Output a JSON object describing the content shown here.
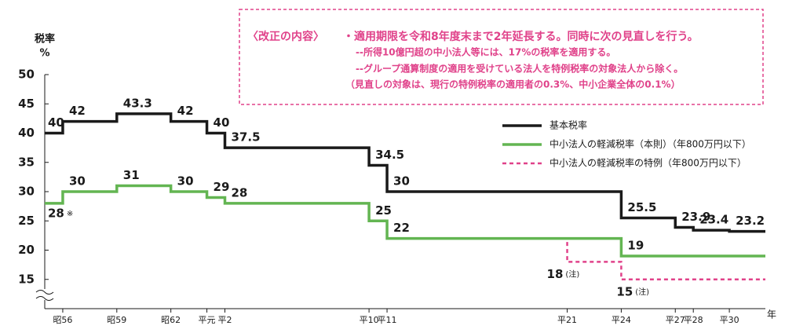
{
  "chart_data": {
    "type": "step",
    "y_label_lines": [
      "税率",
      "%"
    ],
    "x_label": "年",
    "xlim": [
      1980,
      2020
    ],
    "ylim": [
      10,
      50
    ],
    "yticks": [
      15,
      20,
      25,
      30,
      35,
      40,
      45,
      50
    ],
    "xticks": [
      {
        "value": 1981,
        "label": "昭56"
      },
      {
        "value": 1984,
        "label": "昭59"
      },
      {
        "value": 1987,
        "label": "昭62"
      },
      {
        "value": 1989,
        "label": "平元"
      },
      {
        "value": 1990,
        "label": "平2"
      },
      {
        "value": 1998,
        "label": "平10"
      },
      {
        "value": 1999,
        "label": "平11"
      },
      {
        "value": 2009,
        "label": "平21"
      },
      {
        "value": 2012,
        "label": "平24"
      },
      {
        "value": 2015,
        "label": "平27"
      },
      {
        "value": 2016,
        "label": "平28"
      },
      {
        "value": 2018,
        "label": "平30"
      }
    ],
    "series": [
      {
        "name": "中小法人の軽減税率の特例（年800万円以下）",
        "color": "#e0428a",
        "dashed": true,
        "x": [
          1999,
          2009,
          2012
        ],
        "values": [
          22,
          18,
          15
        ],
        "value_notes": [
          null,
          "(注)",
          "(注)"
        ]
      },
      {
        "name": "基本税率",
        "color": "#1a1a1a",
        "dashed": false,
        "x": [
          1980,
          1981,
          1984,
          1987,
          1989,
          1990,
          1998,
          1999,
          2012,
          2015,
          2016,
          2018
        ],
        "values": [
          40,
          42,
          43.3,
          42,
          40,
          37.5,
          34.5,
          30,
          25.5,
          23.9,
          23.4,
          23.2
        ]
      },
      {
        "name": "中小法人の軽減税率（本則）（年800万円以下）",
        "color": "#63b552",
        "dashed": false,
        "x": [
          1980,
          1981,
          1984,
          1987,
          1989,
          1990,
          1998,
          1999,
          2012
        ],
        "values": [
          28,
          30,
          31,
          30,
          29,
          28,
          25,
          22,
          19
        ],
        "value_notes": [
          "※",
          null,
          null,
          null,
          null,
          null,
          null,
          null,
          null
        ]
      }
    ],
    "note": {
      "heading": "〈改正の内容〉",
      "lines": [
        "・適用期限を令和8年度末まで2年延長する。同時に次の見直しを行う。",
        "--所得10億円超の中小法人等には、17%の税率を適用する。",
        "--グループ通算制度の適用を受けている法人を特例税率の対象法人から除く。",
        "（見直しの対象は、現行の特例税率の適用者の0.3%、中小企業全体の0.1%）"
      ]
    }
  }
}
